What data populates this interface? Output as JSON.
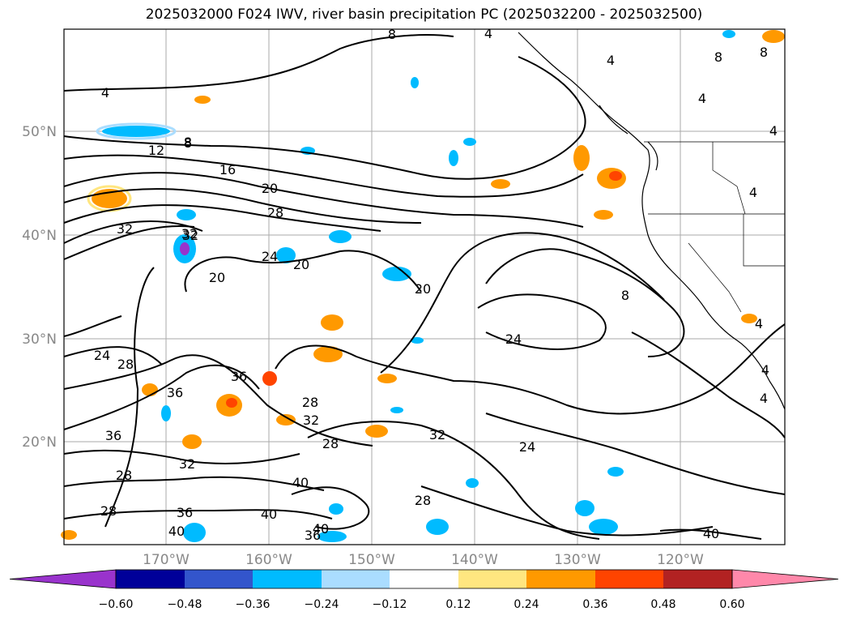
{
  "title": "2025032000 F024 IWV, river basin precipitation PC (2025032200 - 2025032500)",
  "latitude_labels": [
    "50°N",
    "40°N",
    "30°N",
    "20°N"
  ],
  "longitude_labels": [
    "170°W",
    "160°W",
    "150°W",
    "140°W",
    "130°W",
    "120°W"
  ],
  "colorbar": {
    "ticks": [
      "−0.60",
      "−0.48",
      "−0.36",
      "−0.24",
      "−0.12",
      "0.12",
      "0.24",
      "0.36",
      "0.48",
      "0.60"
    ],
    "colors": [
      "#9933cc",
      "#000099",
      "#3355cc",
      "#00bbff",
      "#aaddff",
      "#ffffff",
      "#ffe680",
      "#ff9900",
      "#ff4400",
      "#b22222",
      "#ff88aa"
    ]
  },
  "contour_labels": [
    "4",
    "8",
    "12",
    "16",
    "20",
    "28",
    "32",
    "32",
    "24",
    "20",
    "20",
    "24",
    "28",
    "36",
    "28",
    "32",
    "28",
    "32",
    "36",
    "32",
    "28",
    "28",
    "36",
    "40",
    "40",
    "40",
    "36",
    "40",
    "20",
    "8",
    "24",
    "24",
    "32",
    "28",
    "36",
    "40",
    "8",
    "4",
    "4",
    "4",
    "8",
    "8",
    "4",
    "4",
    "4",
    "4",
    "4",
    "8"
  ],
  "colors": {
    "contour": "#000000",
    "grid": "#aaaaaa",
    "axis_label": "#888888"
  }
}
